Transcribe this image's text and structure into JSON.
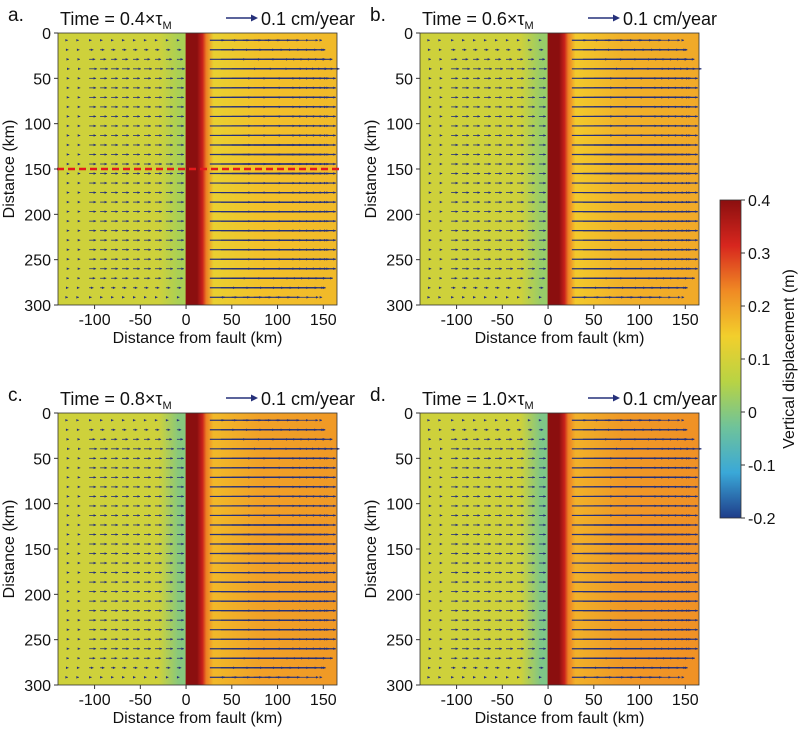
{
  "figure": {
    "title_prefix": "Time = ",
    "title_suffix": "×τ",
    "title_subscript": "M",
    "arrow_label": "0.1 cm/year",
    "xlabel": "Distance from fault (km)",
    "ylabel": "Distance (km)",
    "colorbar": {
      "label": "Vertical displacement (m)",
      "range": [
        -0.2,
        0.4
      ],
      "ticks": [
        "0.4",
        "0.3",
        "0.2",
        "0.1",
        "0",
        "-0.1",
        "-0.2"
      ],
      "tick_values": [
        0.4,
        0.3,
        0.2,
        0.1,
        0,
        -0.1,
        -0.2
      ],
      "colormap": [
        "#1f3d8a",
        "#3aa8d8",
        "#6fc39a",
        "#b8d344",
        "#f2cf2c",
        "#f08a24",
        "#d7261e",
        "#8b0f0f"
      ]
    }
  },
  "chart_data": [
    {
      "panel": "a.",
      "type": "heatmap",
      "time": "0.4",
      "xlabel": "Distance from fault (km)",
      "ylabel": "Distance (km)",
      "xlim": [
        -140,
        165
      ],
      "ylim": [
        300,
        0
      ],
      "xticks": [
        -100,
        -50,
        0,
        50,
        100,
        150
      ],
      "yticks": [
        0,
        50,
        100,
        150,
        200,
        250,
        300
      ],
      "reference_line_y": 150,
      "vertical_displacement_m": {
        "far_west": 0.09,
        "west_of_fault": 0.04,
        "fault_core": 0.4,
        "far_east": 0.16
      }
    },
    {
      "panel": "b.",
      "type": "heatmap",
      "time": "0.6",
      "xlabel": "Distance from fault (km)",
      "ylabel": "Distance (km)",
      "xlim": [
        -140,
        165
      ],
      "ylim": [
        300,
        0
      ],
      "xticks": [
        -100,
        -50,
        0,
        50,
        100,
        150
      ],
      "yticks": [
        0,
        50,
        100,
        150,
        200,
        250,
        300
      ],
      "vertical_displacement_m": {
        "far_west": 0.09,
        "west_of_fault": 0.02,
        "fault_core": 0.4,
        "far_east": 0.18
      }
    },
    {
      "panel": "c.",
      "type": "heatmap",
      "time": "0.8",
      "xlabel": "Distance from fault (km)",
      "ylabel": "Distance (km)",
      "xlim": [
        -140,
        165
      ],
      "ylim": [
        300,
        0
      ],
      "xticks": [
        -100,
        -50,
        0,
        50,
        100,
        150
      ],
      "yticks": [
        0,
        50,
        100,
        150,
        200,
        250,
        300
      ],
      "vertical_displacement_m": {
        "far_west": 0.09,
        "west_of_fault": 0.0,
        "fault_core": 0.4,
        "far_east": 0.2
      }
    },
    {
      "panel": "d.",
      "type": "heatmap",
      "time": "1.0",
      "xlabel": "Distance from fault (km)",
      "ylabel": "Distance (km)",
      "xlim": [
        -140,
        165
      ],
      "ylim": [
        300,
        0
      ],
      "xticks": [
        -100,
        -50,
        0,
        50,
        100,
        150
      ],
      "yticks": [
        0,
        50,
        100,
        150,
        200,
        250,
        300
      ],
      "vertical_displacement_m": {
        "far_west": 0.09,
        "west_of_fault": -0.01,
        "fault_core": 0.4,
        "far_east": 0.21
      }
    }
  ]
}
